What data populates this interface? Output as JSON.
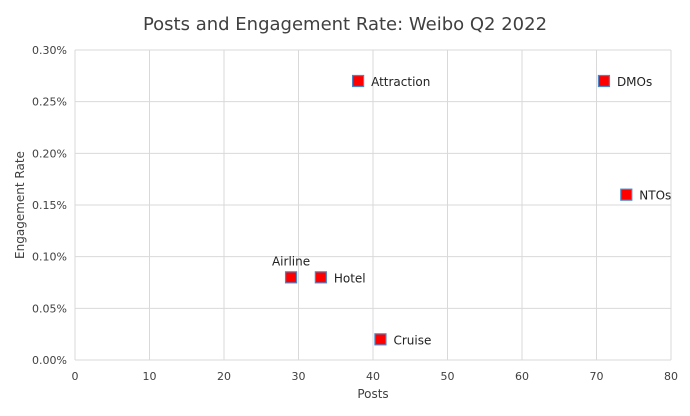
{
  "chart_data": {
    "type": "scatter",
    "title": "Posts and Engagement Rate: Weibo Q2 2022",
    "xlabel": "Posts",
    "ylabel": "Engagement Rate",
    "xlim": [
      0,
      80
    ],
    "ylim": [
      0,
      0.3
    ],
    "xticks": [
      0,
      10,
      20,
      30,
      40,
      50,
      60,
      70,
      80
    ],
    "xtick_labels": [
      "0",
      "10",
      "20",
      "30",
      "40",
      "50",
      "60",
      "70",
      "80"
    ],
    "yticks": [
      0,
      0.05,
      0.1,
      0.15,
      0.2,
      0.25,
      0.3
    ],
    "ytick_labels": [
      "0.00%",
      "0.05%",
      "0.10%",
      "0.15%",
      "0.20%",
      "0.25%",
      "0.30%"
    ],
    "grid": true,
    "legend": "none",
    "marker_fill": "#ff0000",
    "marker_edge": "#4a86c8",
    "points": [
      {
        "label": "Attraction",
        "x": 38,
        "y": 0.27,
        "label_pos": "right"
      },
      {
        "label": "DMOs",
        "x": 71,
        "y": 0.27,
        "label_pos": "right"
      },
      {
        "label": "NTOs",
        "x": 74,
        "y": 0.16,
        "label_pos": "right"
      },
      {
        "label": "Airline",
        "x": 29,
        "y": 0.08,
        "label_pos": "above"
      },
      {
        "label": "Hotel",
        "x": 33,
        "y": 0.08,
        "label_pos": "right"
      },
      {
        "label": "Cruise",
        "x": 41,
        "y": 0.02,
        "label_pos": "right"
      }
    ]
  }
}
